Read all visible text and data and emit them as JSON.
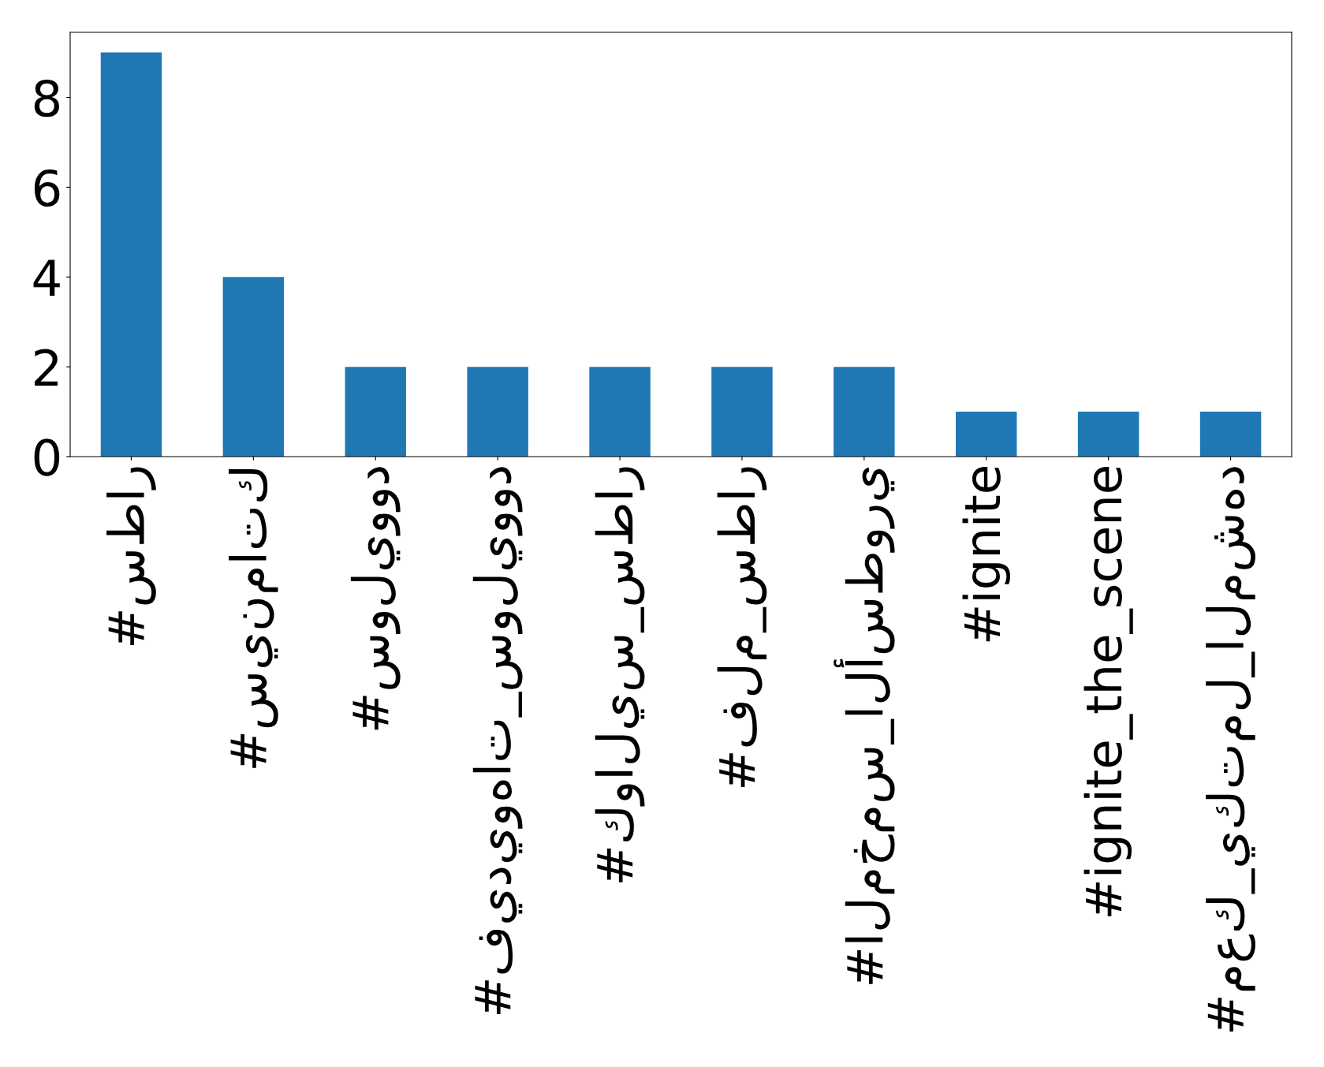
{
  "chart_data": {
    "type": "bar",
    "categories": [
      "#سطار",
      "#سينماتك",
      "#سوليوود",
      "#فيديوهات_سوليوود",
      "#كواليس_سطار",
      "#فلم_سطار",
      "#المخمس_الأسطوري",
      "#ignite",
      "#ignite_the_scene",
      "#معك_يكتمل_المشهد"
    ],
    "values": [
      9,
      4,
      2,
      2,
      2,
      2,
      2,
      1,
      1,
      1
    ],
    "color": "#1f77b4",
    "ylim": [
      0,
      9.45
    ],
    "yticks": [
      0,
      2,
      4,
      6,
      8
    ],
    "grid": false
  }
}
